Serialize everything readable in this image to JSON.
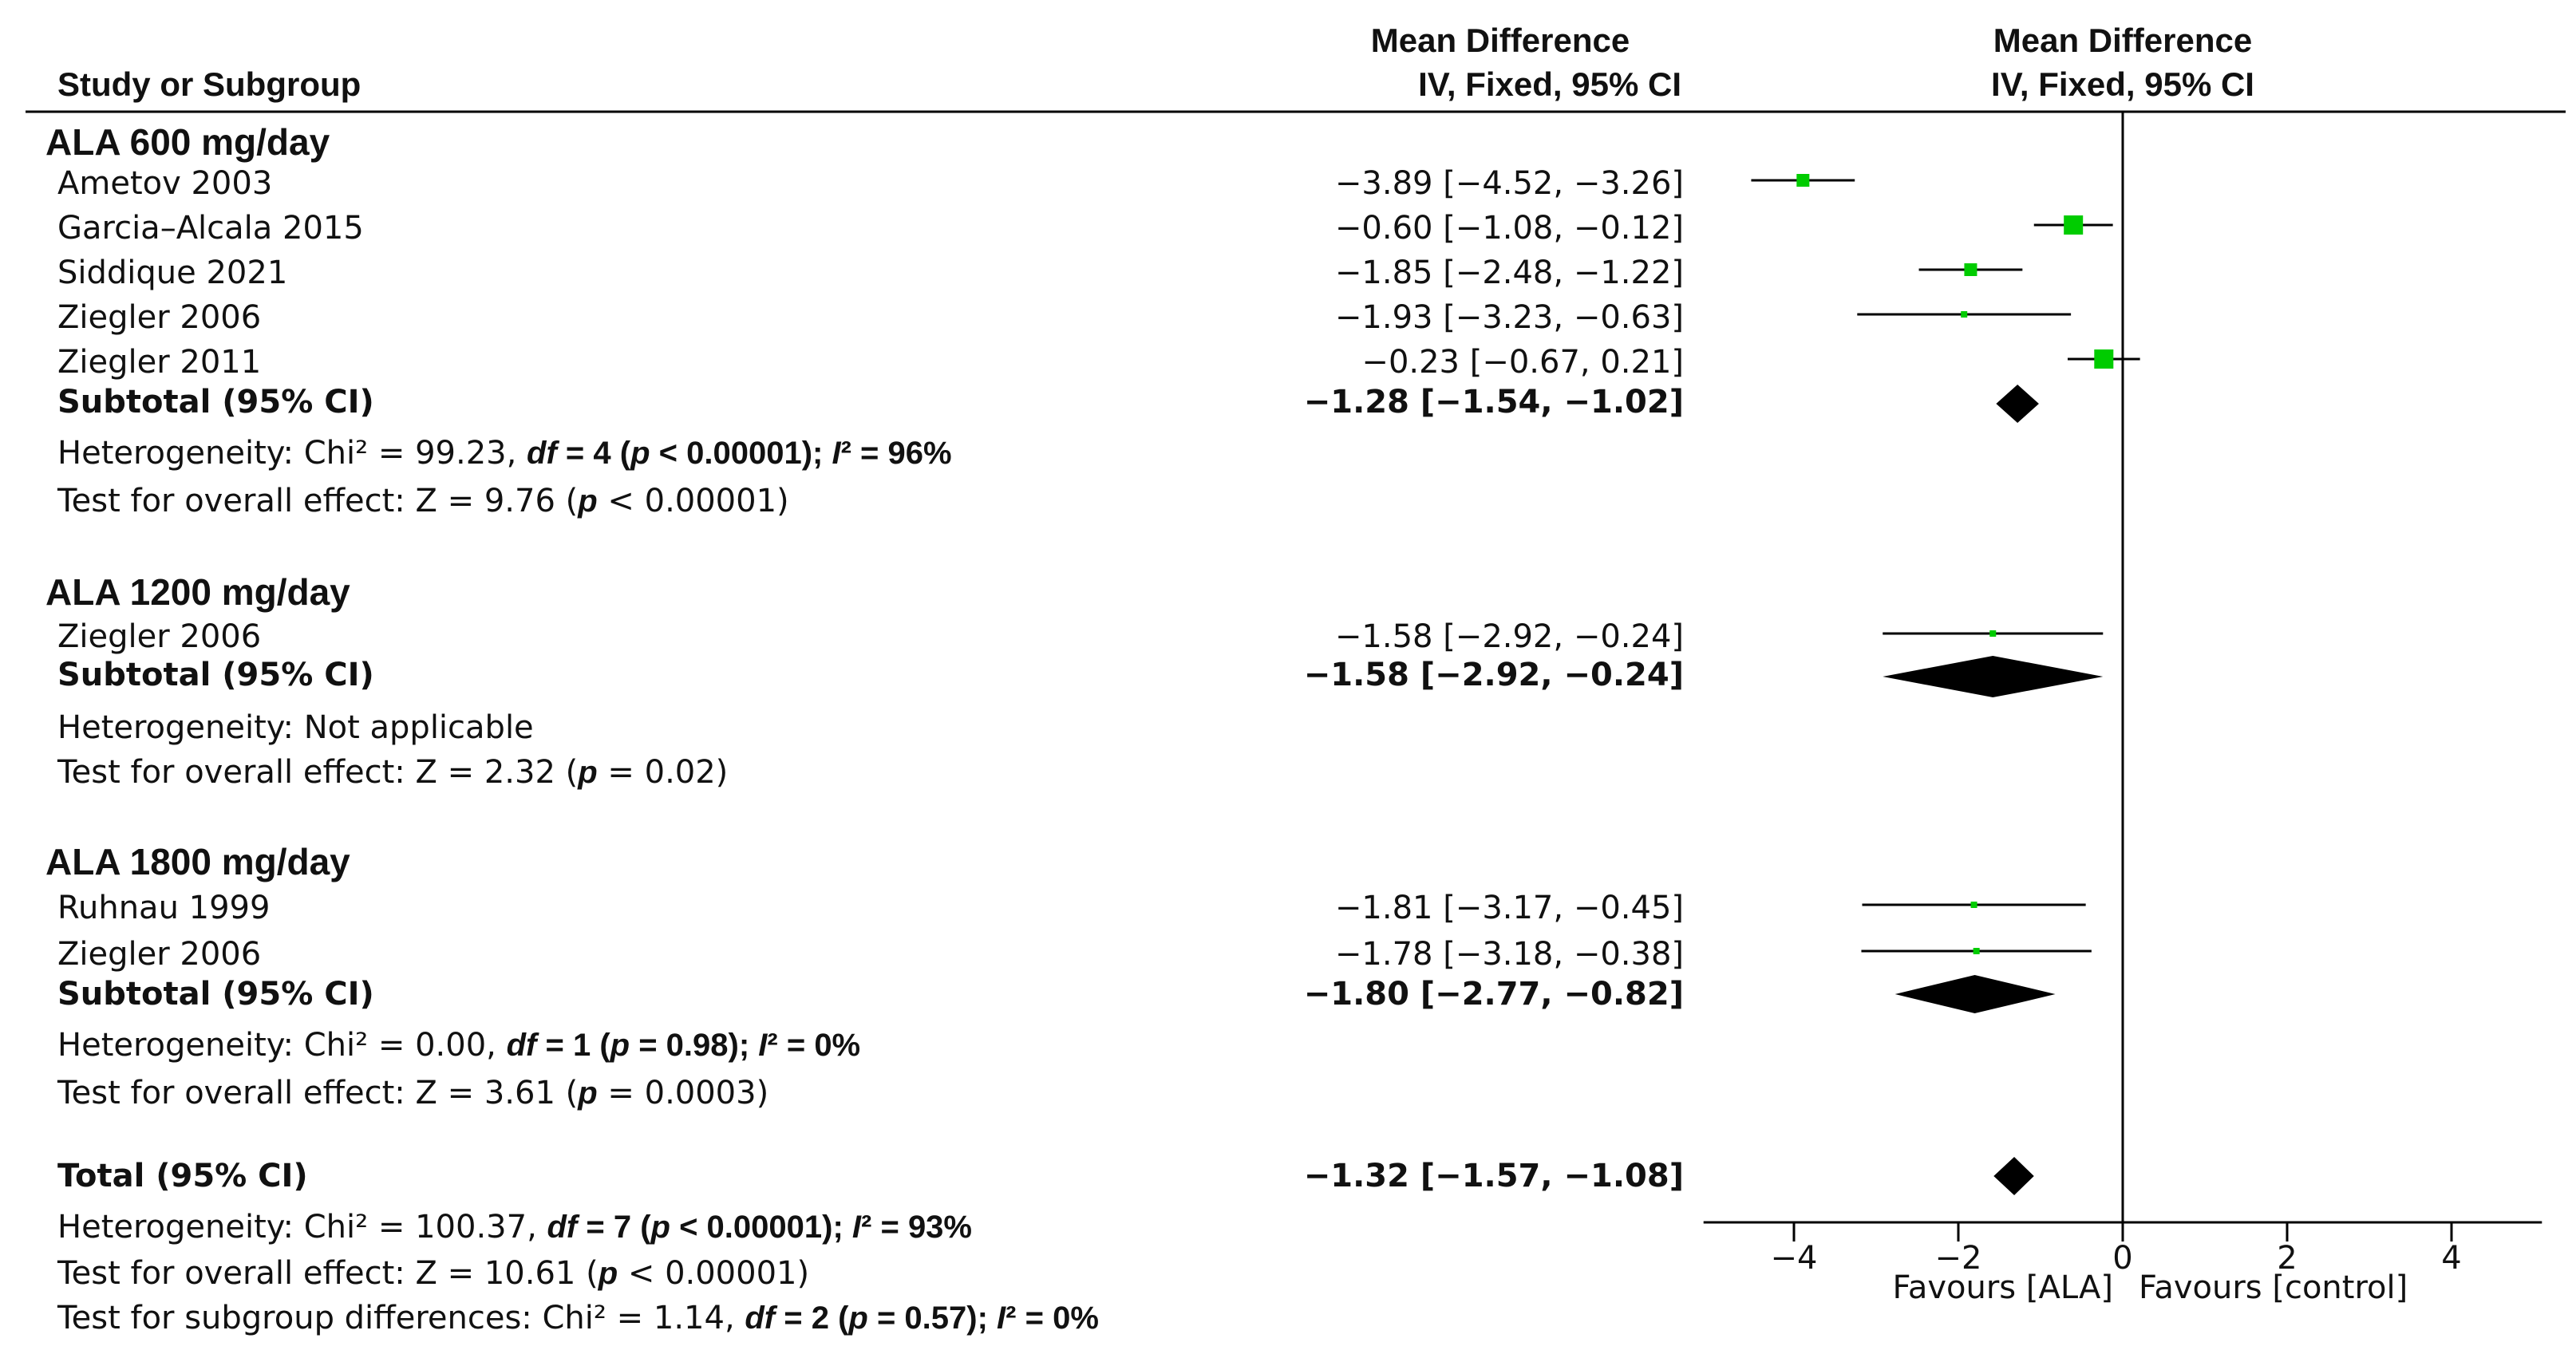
{
  "header": {
    "col_study": "Study or Subgroup",
    "col_md_title": "Mean Difference",
    "col_md_sub": "IV, Fixed, 95% CI",
    "plot_md_title": "Mean Difference",
    "plot_md_sub": "IV, Fixed, 95% CI"
  },
  "groups": [
    {
      "name": "ALA 600 mg/day",
      "subtotal_label": "Subtotal (95% CI)",
      "subtotal_ci": "−1.28 [−1.54, −1.02]",
      "heterogeneity": {
        "prefix": "Heterogeneity: Chi² = 99.23, ",
        "df": "df",
        "df_val": " = 4 (",
        "p": "p",
        "p_val": " < 0.00001); ",
        "i": "I",
        "i_val": "² = 96%"
      },
      "overall": {
        "prefix": "Test for overall effect: Z = 9.76 (",
        "p": "p",
        "suffix": " < 0.00001)"
      },
      "studies": [
        {
          "name": "Ametov 2003",
          "ci": "−3.89 [−4.52, −3.26]"
        },
        {
          "name": "Garcia–Alcala 2015",
          "ci": "−0.60 [−1.08, −0.12]"
        },
        {
          "name": "Siddique 2021",
          "ci": "−1.85 [−2.48, −1.22]"
        },
        {
          "name": "Ziegler 2006",
          "ci": "−1.93 [−3.23, −0.63]"
        },
        {
          "name": "Ziegler 2011",
          "ci": "−0.23 [−0.67, 0.21]"
        }
      ]
    },
    {
      "name": "ALA 1200 mg/day",
      "subtotal_label": "Subtotal (95% CI)",
      "subtotal_ci": "−1.58 [−2.92, −0.24]",
      "heterogeneity_text": "Heterogeneity: Not applicable",
      "overall": {
        "prefix": "Test for overall effect: Z = 2.32 (",
        "p": "p",
        "suffix": " = 0.02)"
      },
      "studies": [
        {
          "name": "Ziegler 2006",
          "ci": "−1.58 [−2.92, −0.24]"
        }
      ]
    },
    {
      "name": "ALA 1800 mg/day",
      "subtotal_label": "Subtotal (95% CI)",
      "subtotal_ci": "−1.80 [−2.77, −0.82]",
      "heterogeneity": {
        "prefix": "Heterogeneity: Chi² = 0.00, ",
        "df": "df",
        "df_val": " = 1 (",
        "p": "p",
        "p_val": " = 0.98); ",
        "i": "I",
        "i_val": "² = 0%"
      },
      "overall": {
        "prefix": "Test for overall effect: Z = 3.61 (",
        "p": "p",
        "suffix": " = 0.0003)"
      },
      "studies": [
        {
          "name": "Ruhnau 1999",
          "ci": "−1.81 [−3.17, −0.45]"
        },
        {
          "name": "Ziegler 2006",
          "ci": "−1.78 [−3.18, −0.38]"
        }
      ]
    }
  ],
  "total": {
    "label": "Total (95% CI)",
    "ci": "−1.32 [−1.57, −1.08]",
    "heterogeneity": {
      "prefix": "Heterogeneity: Chi² = 100.37, ",
      "df": "df",
      "df_val": " = 7 (",
      "p": "p",
      "p_val": " < 0.00001); ",
      "i": "I",
      "i_val": "² = 93%"
    },
    "overall": {
      "prefix": "Test for overall effect: Z = 10.61 (",
      "p": "p",
      "suffix": " < 0.00001)"
    },
    "subgroup": {
      "prefix": "Test for subgroup differences: Chi² = 1.14, ",
      "df": "df",
      "df_val": " = 2 (",
      "p": "p",
      "p_val": " = 0.57); ",
      "i": "I",
      "i_val": "² = 0%"
    }
  },
  "axis": {
    "favours_left": "Favours [ALA]",
    "favours_right": "Favours [control]"
  },
  "colors": {
    "square": "#00cc00",
    "diamond": "#000000",
    "line": "#000000"
  },
  "chart_data": {
    "type": "forest",
    "title": "",
    "xlabel": "Mean Difference, IV, Fixed, 95% CI",
    "xlim": [
      -5,
      5
    ],
    "xticks": [
      -4,
      -2,
      0,
      2,
      4
    ],
    "xtick_labels": [
      "−4",
      "−2",
      "0",
      "2",
      "4"
    ],
    "studies": [
      {
        "group": "ALA 600 mg/day",
        "name": "Ametov 2003",
        "md": -3.89,
        "lo": -4.52,
        "hi": -3.26,
        "weight": "medium"
      },
      {
        "group": "ALA 600 mg/day",
        "name": "Garcia–Alcala 2015",
        "md": -0.6,
        "lo": -1.08,
        "hi": -0.12,
        "weight": "large"
      },
      {
        "group": "ALA 600 mg/day",
        "name": "Siddique 2021",
        "md": -1.85,
        "lo": -2.48,
        "hi": -1.22,
        "weight": "medium"
      },
      {
        "group": "ALA 600 mg/day",
        "name": "Ziegler 2006",
        "md": -1.93,
        "lo": -3.23,
        "hi": -0.63,
        "weight": "small"
      },
      {
        "group": "ALA 600 mg/day",
        "name": "Ziegler 2011",
        "md": -0.23,
        "lo": -0.67,
        "hi": 0.21,
        "weight": "large"
      },
      {
        "group": "ALA 1200 mg/day",
        "name": "Ziegler 2006",
        "md": -1.58,
        "lo": -2.92,
        "hi": -0.24,
        "weight": "small"
      },
      {
        "group": "ALA 1800 mg/day",
        "name": "Ruhnau 1999",
        "md": -1.81,
        "lo": -3.17,
        "hi": -0.45,
        "weight": "small"
      },
      {
        "group": "ALA 1800 mg/day",
        "name": "Ziegler 2006",
        "md": -1.78,
        "lo": -3.18,
        "hi": -0.38,
        "weight": "small"
      }
    ],
    "subtotals": [
      {
        "group": "ALA 600 mg/day",
        "md": -1.28,
        "lo": -1.54,
        "hi": -1.02
      },
      {
        "group": "ALA 1200 mg/day",
        "md": -1.58,
        "lo": -2.92,
        "hi": -0.24
      },
      {
        "group": "ALA 1800 mg/day",
        "md": -1.8,
        "lo": -2.77,
        "hi": -0.82
      }
    ],
    "total": {
      "md": -1.32,
      "lo": -1.57,
      "hi": -1.08
    }
  }
}
